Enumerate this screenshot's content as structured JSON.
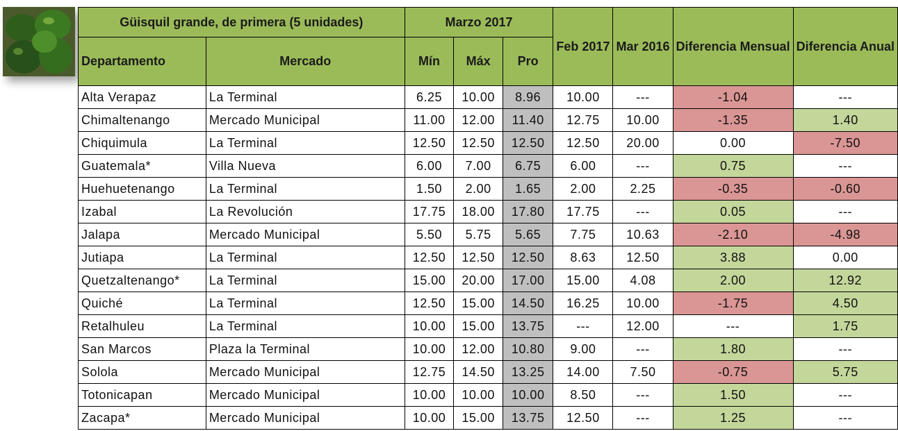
{
  "header": {
    "title": "Güisquil grande, de primera (5 unidades)",
    "period": "Marzo 2017",
    "columns": [
      "Departamento",
      "Mercado",
      "Mín",
      "Máx",
      "Pro",
      "Feb 2017",
      "Mar 2016",
      "Diferencia Mensual",
      "Diferencia Anual"
    ]
  },
  "style": {
    "header_color": "#9bbb59",
    "pro_color": "#bfbfbf",
    "positive_color": "#c4d79b",
    "negative_color": "#da9694"
  },
  "table": {
    "rows": [
      [
        "Alta Verapaz",
        "La Terminal",
        "6.25",
        "10.00",
        "8.96",
        "10.00",
        "---",
        "-1.04",
        "---"
      ],
      [
        "Chimaltenango",
        "Mercado Municipal",
        "11.00",
        "12.00",
        "11.40",
        "12.75",
        "10.00",
        "-1.35",
        "1.40"
      ],
      [
        "Chiquimula",
        "La Terminal",
        "12.50",
        "12.50",
        "12.50",
        "12.50",
        "20.00",
        "0.00",
        "-7.50"
      ],
      [
        "Guatemala*",
        "Villa Nueva",
        "6.00",
        "7.00",
        "6.75",
        "6.00",
        "---",
        "0.75",
        "---"
      ],
      [
        "Huehuetenango",
        "La Terminal",
        "1.50",
        "2.00",
        "1.65",
        "2.00",
        "2.25",
        "-0.35",
        "-0.60"
      ],
      [
        "Izabal",
        "La Revolución",
        "17.75",
        "18.00",
        "17.80",
        "17.75",
        "---",
        "0.05",
        "---"
      ],
      [
        "Jalapa",
        "Mercado Municipal",
        "5.50",
        "5.75",
        "5.65",
        "7.75",
        "10.63",
        "-2.10",
        "-4.98"
      ],
      [
        "Jutiapa",
        "La Terminal",
        "12.50",
        "12.50",
        "12.50",
        "8.63",
        "12.50",
        "3.88",
        "0.00"
      ],
      [
        "Quetzaltenango*",
        "La Terminal",
        "15.00",
        "20.00",
        "17.00",
        "15.00",
        "4.08",
        "2.00",
        "12.92"
      ],
      [
        "Quiché",
        "La Terminal",
        "12.50",
        "15.00",
        "14.50",
        "16.25",
        "10.00",
        "-1.75",
        "4.50"
      ],
      [
        "Retalhuleu",
        "La Terminal",
        "10.00",
        "15.00",
        "13.75",
        "---",
        "12.00",
        "---",
        "1.75"
      ],
      [
        "San Marcos",
        "Plaza la Terminal",
        "10.00",
        "12.00",
        "10.80",
        "9.00",
        "---",
        "1.80",
        "---"
      ],
      [
        "Solola",
        "Mercado Municipal",
        "12.75",
        "14.50",
        "13.25",
        "14.00",
        "7.50",
        "-0.75",
        "5.75"
      ],
      [
        "Totonicapan",
        "Mercado Municipal",
        "10.00",
        "10.00",
        "10.00",
        "8.50",
        "---",
        "1.50",
        "---"
      ],
      [
        "Zacapa*",
        "Mercado Municipal",
        "10.00",
        "15.00",
        "13.75",
        "12.50",
        "---",
        "1.25",
        "---"
      ]
    ]
  }
}
